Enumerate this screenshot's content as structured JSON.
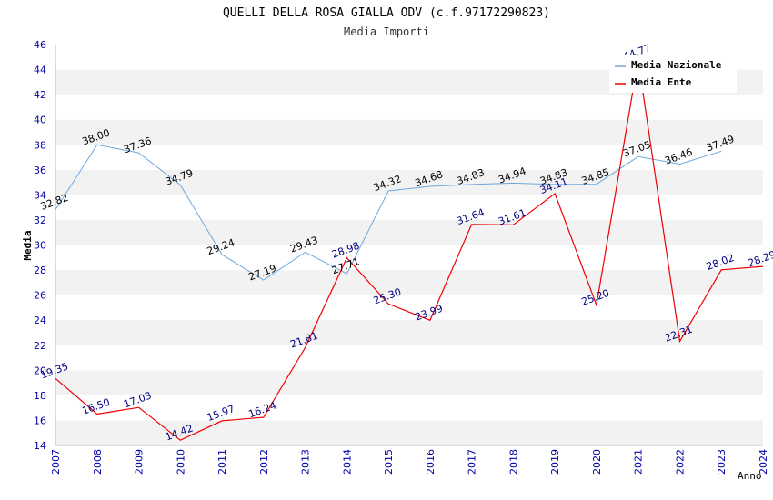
{
  "chart_data": {
    "type": "line",
    "title": "QUELLI DELLA ROSA GIALLA ODV (c.f.97172290823)",
    "subtitle": "Media Importi",
    "xlabel": "Anno",
    "ylabel": "Media",
    "ylim": [
      14,
      46
    ],
    "yticks": [
      14,
      16,
      18,
      20,
      22,
      24,
      26,
      28,
      30,
      32,
      34,
      36,
      38,
      40,
      42,
      44,
      46
    ],
    "categories": [
      "2007",
      "2008",
      "2009",
      "2010",
      "2011",
      "2012",
      "2013",
      "2014",
      "2015",
      "2016",
      "2017",
      "2018",
      "2019",
      "2020",
      "2021",
      "2022",
      "2023",
      "2024"
    ],
    "grid": "alternating horizontal bands",
    "legend_position": "top-right",
    "series": [
      {
        "name": "Media Nazionale",
        "color": "#6fa8dc",
        "values": [
          32.82,
          38.0,
          37.36,
          34.79,
          29.24,
          27.19,
          29.43,
          27.71,
          34.32,
          34.68,
          34.83,
          34.94,
          34.83,
          34.85,
          37.05,
          36.46,
          37.49,
          null
        ],
        "labels": [
          "32.82",
          "38.00",
          "37.36",
          "34.79",
          "29.24",
          "27.19",
          "29.43",
          "27.71",
          "34.32",
          "34.68",
          "34.83",
          "34.94",
          "34.83",
          "34.85",
          "37.05",
          "36.46",
          "37.49",
          null
        ]
      },
      {
        "name": "Media Ente",
        "color": "#ee0000",
        "values": [
          19.35,
          16.5,
          17.03,
          14.42,
          15.97,
          16.24,
          21.81,
          28.98,
          25.3,
          23.99,
          31.64,
          31.61,
          34.11,
          25.2,
          44.77,
          22.31,
          28.02,
          28.29
        ],
        "labels": [
          "19.35",
          "16.50",
          "17.03",
          "14.42",
          "15.97",
          "16.24",
          "21.81",
          "28.98",
          "25.30",
          "23.99",
          "31.64",
          "31.61",
          "34.11",
          "25.20",
          "44.77",
          "22.31",
          "28.02",
          "28.29"
        ]
      }
    ]
  }
}
